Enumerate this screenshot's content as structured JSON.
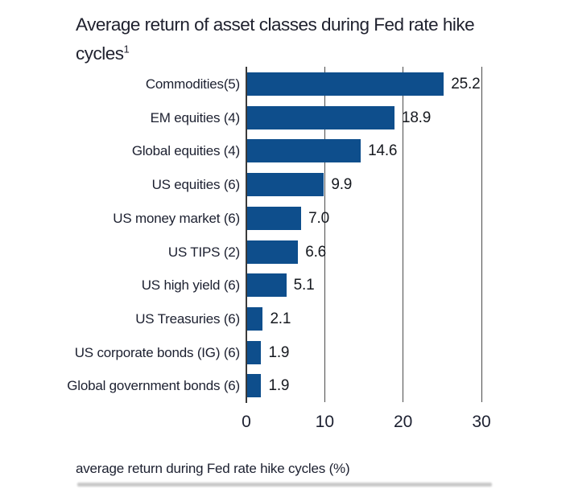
{
  "title": {
    "line1": "Average return of asset classes during Fed rate hike",
    "line2": "cycles",
    "superscript": "1"
  },
  "chart_data": {
    "type": "bar",
    "orientation": "horizontal",
    "title": "Average return of asset classes during Fed rate hike cycles¹",
    "categories": [
      "Commodities(5)",
      "EM equities (4)",
      "Global equities (4)",
      "US equities (6)",
      "US money market (6)",
      "US TIPS (2)",
      "US high yield (6)",
      "US Treasuries (6)",
      "US corporate bonds (IG) (6)",
      "Global government bonds (6)"
    ],
    "values": [
      25.2,
      18.9,
      14.6,
      9.9,
      7.0,
      6.6,
      5.1,
      2.1,
      1.9,
      1.9
    ],
    "value_labels": [
      "25.2",
      "18.9",
      "14.6",
      "9.9",
      "7.0",
      "6.6",
      "5.1",
      "2.1",
      "1.9",
      "1.9"
    ],
    "xlabel": "average return during Fed rate hike cycles (%)",
    "ylabel": "",
    "xlim": [
      0,
      30
    ],
    "xticks": [
      0,
      10,
      20,
      30
    ],
    "bar_color": "#0e4e8c",
    "axis_color": "#3a3a3a",
    "gridline_color": "#4b4b4b",
    "legend_position": "none",
    "grid": "vertical guide lines at 10, 20, 30"
  },
  "footer": {
    "xlabel": "average return during Fed rate hike cycles (%)"
  }
}
